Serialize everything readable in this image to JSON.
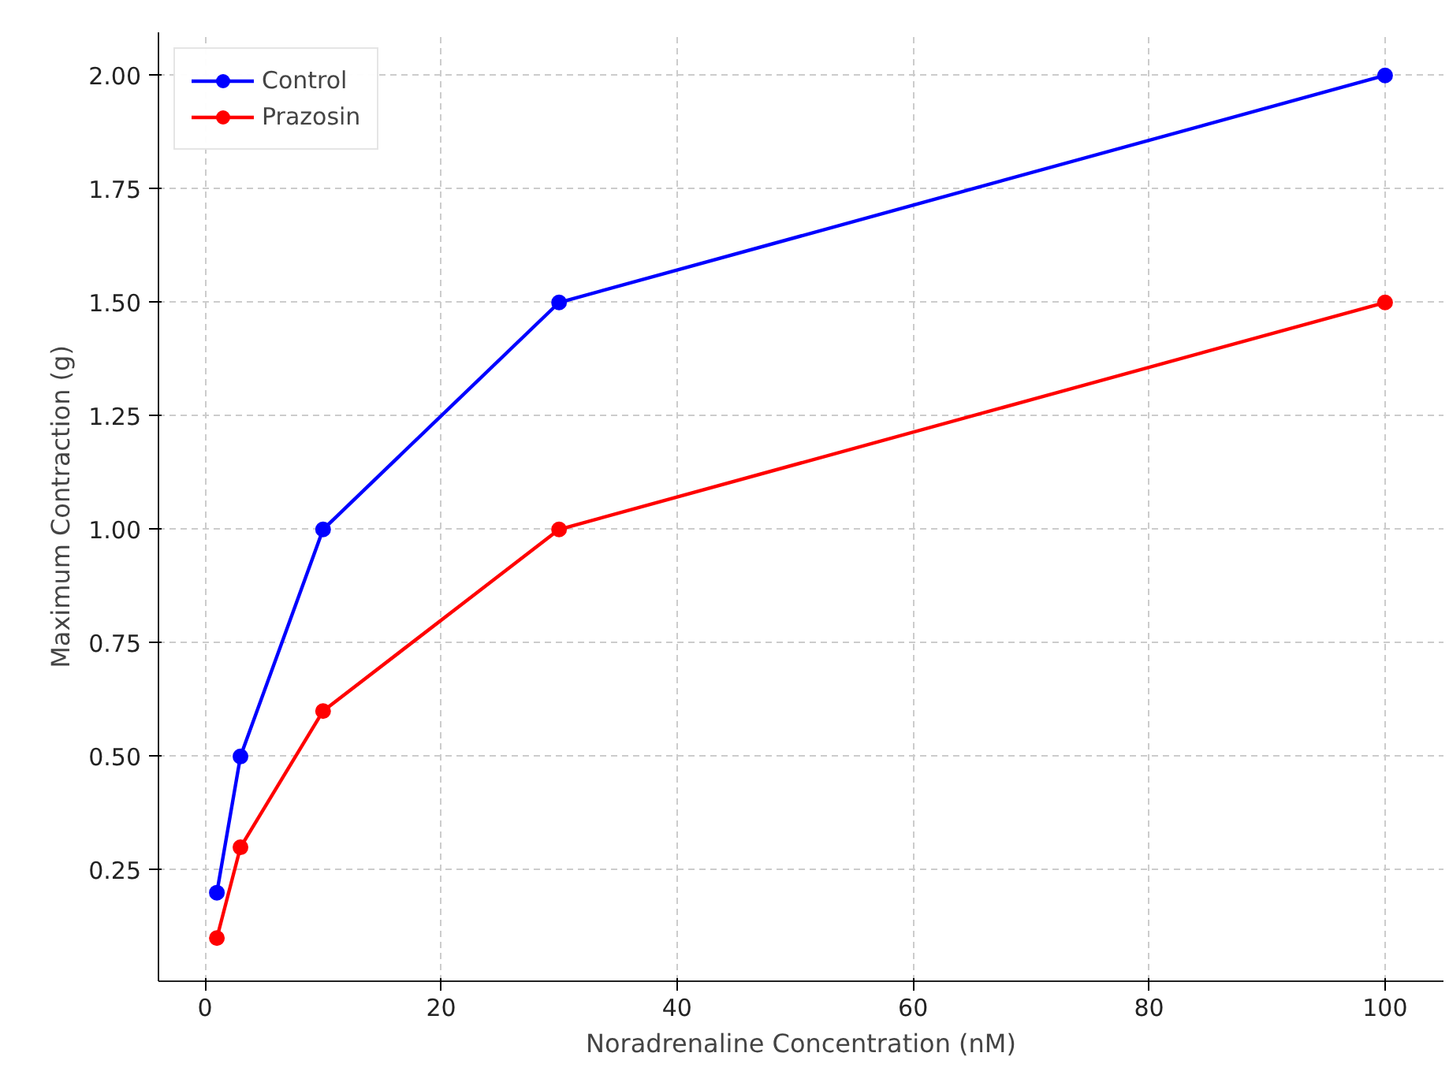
{
  "chart_data": {
    "type": "line",
    "xlabel": "Noradrenaline Concentration (nM)",
    "ylabel": "Maximum Contraction (g)",
    "x": [
      1,
      3,
      10,
      30,
      100
    ],
    "series": [
      {
        "name": "Control",
        "color": "#0000ff",
        "values": [
          0.2,
          0.5,
          1.0,
          1.5,
          2.0
        ]
      },
      {
        "name": "Prazosin",
        "color": "#ff0000",
        "values": [
          0.1,
          0.3,
          0.6,
          1.0,
          1.5
        ]
      }
    ],
    "xlim": [
      -3.95,
      104.95
    ],
    "ylim": [
      0.005,
      2.095
    ],
    "xticks": [
      0,
      20,
      40,
      60,
      80,
      100
    ],
    "yticks": [
      {
        "value": 0.25,
        "label": "0.25"
      },
      {
        "value": 0.5,
        "label": "0.50"
      },
      {
        "value": 0.75,
        "label": "0.75"
      },
      {
        "value": 1.0,
        "label": "1.00"
      },
      {
        "value": 1.25,
        "label": "1.25"
      },
      {
        "value": 1.5,
        "label": "1.50"
      },
      {
        "value": 1.75,
        "label": "1.75"
      },
      {
        "value": 2.0,
        "label": "2.00"
      }
    ],
    "grid": true,
    "legend": "top left",
    "marker": "circle",
    "line_style": "solid"
  }
}
